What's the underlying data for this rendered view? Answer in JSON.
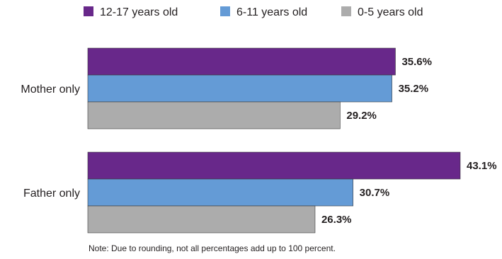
{
  "chart_data": {
    "type": "bar",
    "orientation": "horizontal",
    "categories": [
      "Mother only",
      "Father only"
    ],
    "series": [
      {
        "name": "12-17 years old",
        "values": [
          35.6,
          43.1
        ],
        "labels": [
          "35.6%",
          "43.1%"
        ]
      },
      {
        "name": "6-11 years old",
        "values": [
          35.2,
          30.7
        ],
        "labels": [
          "35.2%",
          "30.7%"
        ]
      },
      {
        "name": "0-5 years old",
        "values": [
          29.2,
          26.3
        ],
        "labels": [
          "29.2%",
          "26.3%"
        ]
      }
    ],
    "colors": [
      "#68288a",
      "#649bd6",
      "#acacac"
    ],
    "xlim": [
      0,
      43.1
    ],
    "grid": false,
    "legend_position": "top",
    "note": "Note: Due to rounding, not all percentages add up to 100 percent."
  }
}
